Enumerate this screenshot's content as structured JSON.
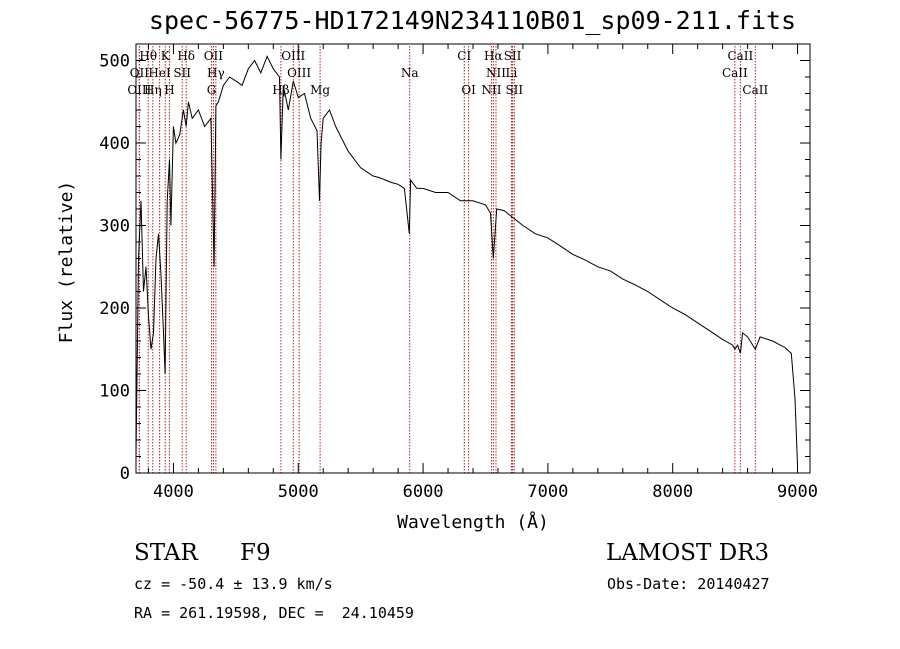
{
  "chart_data": {
    "type": "line",
    "title": "spec-56775-HD172149N234110B01_sp09-211.fits",
    "xlabel": "Wavelength (Å)",
    "ylabel": "Flux (relative)",
    "xlim": [
      3700,
      9100
    ],
    "ylim": [
      0,
      520
    ],
    "xticks": [
      4000,
      5000,
      6000,
      7000,
      8000,
      9000
    ],
    "yticks": [
      0,
      100,
      200,
      300,
      400,
      500
    ],
    "series": [
      {
        "name": "flux",
        "x": [
          3700,
          3720,
          3740,
          3760,
          3780,
          3800,
          3820,
          3840,
          3860,
          3880,
          3900,
          3920,
          3933,
          3950,
          3968,
          3980,
          4000,
          4020,
          4050,
          4080,
          4102,
          4120,
          4150,
          4200,
          4250,
          4300,
          4326,
          4340,
          4360,
          4400,
          4450,
          4500,
          4550,
          4600,
          4650,
          4700,
          4750,
          4800,
          4850,
          4861,
          4880,
          4920,
          4960,
          5000,
          5050,
          5100,
          5150,
          5170,
          5183,
          5200,
          5250,
          5300,
          5350,
          5400,
          5450,
          5500,
          5550,
          5600,
          5650,
          5700,
          5750,
          5800,
          5850,
          5890,
          5900,
          5950,
          6000,
          6100,
          6200,
          6300,
          6400,
          6500,
          6540,
          6563,
          6590,
          6650,
          6700,
          6800,
          6900,
          7000,
          7100,
          7200,
          7300,
          7400,
          7500,
          7600,
          7700,
          7800,
          7900,
          8000,
          8100,
          8200,
          8300,
          8400,
          8480,
          8498,
          8520,
          8542,
          8560,
          8600,
          8662,
          8700,
          8800,
          8900,
          8950,
          8980,
          9000
        ],
        "y": [
          20,
          260,
          330,
          220,
          250,
          190,
          150,
          170,
          260,
          290,
          240,
          170,
          120,
          330,
          380,
          300,
          420,
          400,
          410,
          440,
          420,
          450,
          430,
          440,
          420,
          430,
          250,
          445,
          450,
          470,
          480,
          475,
          470,
          490,
          500,
          485,
          505,
          490,
          480,
          380,
          470,
          440,
          475,
          455,
          460,
          430,
          415,
          330,
          400,
          430,
          440,
          420,
          405,
          390,
          380,
          370,
          365,
          360,
          358,
          355,
          352,
          350,
          345,
          290,
          355,
          345,
          345,
          340,
          340,
          330,
          330,
          325,
          315,
          260,
          320,
          318,
          312,
          300,
          290,
          285,
          275,
          265,
          258,
          250,
          245,
          235,
          228,
          220,
          210,
          200,
          192,
          182,
          172,
          162,
          155,
          150,
          155,
          145,
          170,
          165,
          150,
          165,
          160,
          152,
          145,
          90,
          10
        ]
      }
    ],
    "spectral_lines": [
      {
        "label": "Hθ",
        "x": 3798,
        "row": 0
      },
      {
        "label": "K",
        "x": 3934,
        "row": 0
      },
      {
        "label": "Hδ",
        "x": 4102,
        "row": 0
      },
      {
        "label": "OII",
        "x": 4320,
        "row": 0
      },
      {
        "label": "OIII",
        "x": 4960,
        "row": 0
      },
      {
        "label": "CI",
        "x": 6330,
        "row": 0
      },
      {
        "label": "Hα",
        "x": 6563,
        "row": 0
      },
      {
        "label": "SII",
        "x": 6717,
        "row": 0
      },
      {
        "label": "CaII",
        "x": 8542,
        "row": 0
      },
      {
        "label": "OII",
        "x": 3727,
        "row": 1
      },
      {
        "label": "HeI",
        "x": 3889,
        "row": 1
      },
      {
        "label": "SII",
        "x": 4070,
        "row": 1
      },
      {
        "label": "Hγ",
        "x": 4340,
        "row": 1
      },
      {
        "label": "OIII",
        "x": 5007,
        "row": 1
      },
      {
        "label": "Na",
        "x": 5893,
        "row": 1
      },
      {
        "label": "NII",
        "x": 6584,
        "row": 1
      },
      {
        "label": "Li",
        "x": 6708,
        "row": 1
      },
      {
        "label": "CaII",
        "x": 8498,
        "row": 1
      },
      {
        "label": "OIII",
        "x": 3727,
        "row": 2
      },
      {
        "label": "Hη",
        "x": 3835,
        "row": 2
      },
      {
        "label": "H",
        "x": 3968,
        "row": 2
      },
      {
        "label": "G",
        "x": 4305,
        "row": 2
      },
      {
        "label": "Hβ",
        "x": 4861,
        "row": 2
      },
      {
        "label": "Mg",
        "x": 5175,
        "row": 2
      },
      {
        "label": "OI",
        "x": 6365,
        "row": 2
      },
      {
        "label": "NII",
        "x": 6548,
        "row": 2
      },
      {
        "label": "SII",
        "x": 6731,
        "row": 2
      },
      {
        "label": "CaII",
        "x": 8662,
        "row": 2
      }
    ]
  },
  "info": {
    "object_type": "STAR",
    "subclass": "F9",
    "survey": "LAMOST DR3",
    "cz": "cz = -50.4 ± 13.9 km/s",
    "obs_date": "Obs-Date: 20140427",
    "coords": "RA = 261.19598, DEC =  24.10459"
  },
  "colors": {
    "line_marker": "#b22222",
    "spectrum": "#000000"
  }
}
